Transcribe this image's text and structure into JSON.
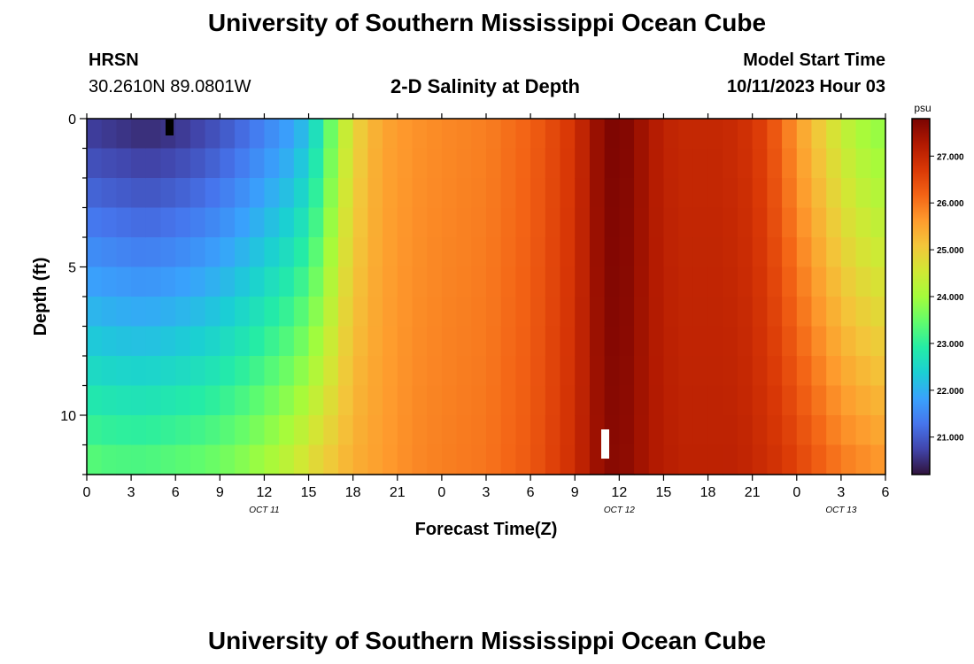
{
  "top_title": "University of Southern Mississippi Ocean Cube",
  "bottom_title": "University of Southern Mississippi Ocean Cube",
  "station": {
    "name": "HRSN",
    "coords": "30.2610N  89.0801W"
  },
  "plot_title": "2-D Salinity at Depth",
  "model_start": {
    "label": "Model Start Time",
    "value": "10/11/2023 Hour 03"
  },
  "colors": {
    "stops": [
      "#30123b",
      "#4145ab",
      "#4675ed",
      "#39a2fc",
      "#1bcfd4",
      "#24eca6",
      "#61fc6c",
      "#a4fc3b",
      "#d1e834",
      "#f3c63a",
      "#fe9b2d",
      "#f36315",
      "#d93806",
      "#b11901",
      "#7a0402"
    ]
  },
  "chart_data": {
    "type": "heatmap",
    "title": "2-D Salinity at Depth",
    "xlabel": "Forecast Time(Z)",
    "ylabel": "Depth (ft)",
    "x_tick_labels": [
      "0",
      "3",
      "6",
      "9",
      "12",
      "15",
      "18",
      "21",
      "0",
      "3",
      "6",
      "9",
      "12",
      "15",
      "18",
      "21",
      "0",
      "3",
      "6"
    ],
    "x_hours": [
      0,
      54
    ],
    "date_labels": [
      {
        "text": "OCT 11",
        "hour": 12
      },
      {
        "text": "OCT 12",
        "hour": 36
      },
      {
        "text": "OCT 13",
        "hour": 51
      }
    ],
    "y_tick_labels": [
      "0",
      "5",
      "10"
    ],
    "ylim_ft": [
      0,
      12
    ],
    "colorbar": {
      "unit": "psu",
      "min": 20.2,
      "max": 27.8,
      "ticks": [
        "21.000",
        "22.000",
        "23.000",
        "24.000",
        "25.000",
        "26.000",
        "27.000"
      ],
      "tick_values": [
        21,
        22,
        23,
        24,
        25,
        26,
        27
      ]
    },
    "salinity_profile": {
      "hours": [
        0,
        2,
        4,
        6,
        8,
        10,
        12,
        14,
        15,
        16,
        17,
        18,
        19,
        20,
        21,
        22,
        24,
        27,
        30,
        33,
        34,
        35,
        36,
        37,
        38,
        39,
        40,
        41,
        42,
        43,
        44,
        45,
        46,
        47,
        48,
        49,
        50,
        51,
        52,
        53,
        54
      ],
      "surface_psu": [
        20.6,
        20.5,
        20.4,
        20.5,
        20.7,
        21.0,
        21.4,
        21.8,
        22.2,
        23.0,
        24.0,
        24.8,
        25.2,
        25.5,
        25.6,
        25.7,
        25.8,
        25.9,
        26.2,
        26.8,
        27.3,
        27.7,
        27.8,
        27.6,
        27.3,
        27.1,
        27.0,
        27.0,
        27.0,
        27.0,
        26.9,
        26.8,
        26.5,
        26.1,
        25.6,
        25.2,
        24.8,
        24.4,
        24.1,
        23.9,
        23.8
      ],
      "bottom_psu": [
        23.5,
        23.4,
        23.4,
        23.5,
        23.6,
        23.8,
        24.1,
        24.5,
        24.8,
        25.0,
        25.2,
        25.4,
        25.5,
        25.6,
        25.7,
        25.8,
        25.9,
        26.0,
        26.3,
        26.9,
        27.3,
        27.6,
        27.7,
        27.5,
        27.3,
        27.2,
        27.1,
        27.1,
        27.1,
        27.1,
        27.1,
        27.0,
        26.9,
        26.8,
        26.6,
        26.4,
        26.2,
        26.0,
        25.9,
        25.8,
        25.7
      ]
    }
  }
}
